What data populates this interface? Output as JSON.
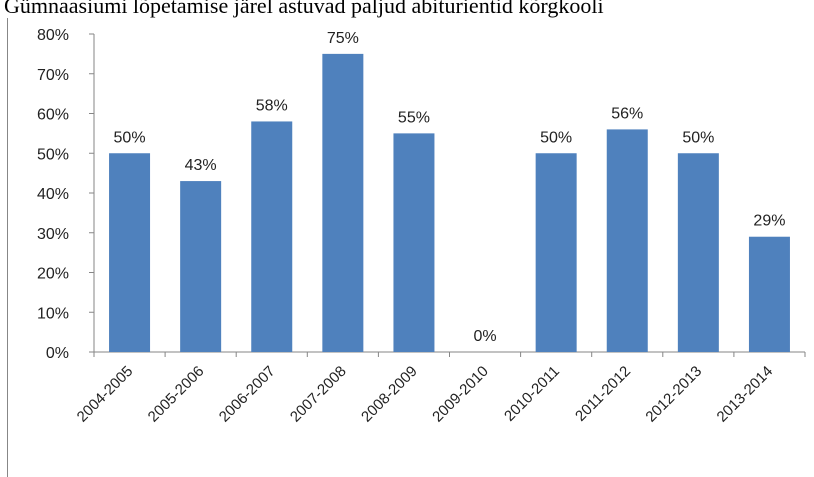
{
  "title": "Gümnaasiumi lõpetamise järel astuvad paljud abiturientid kõrgkooli",
  "colors": {
    "bar": "#4f81bd",
    "axis": "#868686",
    "text": "#222222"
  },
  "chart_data": {
    "type": "bar",
    "title": "Gümnaasiumi lõpetamise järel astuvad paljud abiturientid kõrgkooli",
    "xlabel": "",
    "ylabel": "",
    "categories": [
      "2004-2005",
      "2005-2006",
      "2006-2007",
      "2007-2008",
      "2008-2009",
      "2009-2010",
      "2010-2011",
      "2011-2012",
      "2012-2013",
      "2013-2014"
    ],
    "values": [
      50,
      43,
      58,
      75,
      55,
      0,
      50,
      56,
      50,
      29
    ],
    "data_labels": [
      "50%",
      "43%",
      "58%",
      "75%",
      "55%",
      "0%",
      "50%",
      "56%",
      "50%",
      "29%"
    ],
    "ylim": [
      0,
      80
    ],
    "yticks": [
      "0%",
      "10%",
      "20%",
      "30%",
      "40%",
      "50%",
      "60%",
      "70%",
      "80%"
    ],
    "grid": false,
    "legend": "none"
  }
}
